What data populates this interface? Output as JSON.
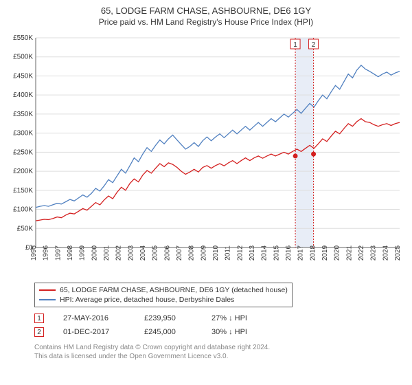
{
  "title": "65, LODGE FARM CHASE, ASHBOURNE, DE6 1GY",
  "subtitle": "Price paid vs. HM Land Registry's House Price Index (HPI)",
  "chart": {
    "type": "line",
    "background_color": "#ffffff",
    "grid_color": "#dddddd",
    "axis_color": "#666666",
    "label_fontsize": 10,
    "ylim": [
      0,
      550000
    ],
    "ytick_step": 50000,
    "y_tick_labels": [
      "£0",
      "£50K",
      "£100K",
      "£150K",
      "£200K",
      "£250K",
      "£300K",
      "£350K",
      "£400K",
      "£450K",
      "£500K",
      "£550K"
    ],
    "x_years": [
      1995,
      1996,
      1997,
      1998,
      1999,
      2000,
      2001,
      2002,
      2003,
      2004,
      2005,
      2006,
      2007,
      2008,
      2009,
      2010,
      2011,
      2012,
      2013,
      2014,
      2015,
      2016,
      2017,
      2018,
      2019,
      2020,
      2021,
      2022,
      2023,
      2024,
      2025
    ],
    "series": [
      {
        "id": "subject",
        "name": "65, LODGE FARM CHASE, ASHBOURNE, DE6 1GY (detached house)",
        "color": "#d42020",
        "line_width": 1.3,
        "values": [
          70000,
          72000,
          74000,
          73000,
          76000,
          80000,
          78000,
          85000,
          90000,
          88000,
          95000,
          102000,
          98000,
          108000,
          118000,
          112000,
          125000,
          135000,
          128000,
          145000,
          158000,
          150000,
          168000,
          180000,
          172000,
          190000,
          202000,
          195000,
          208000,
          220000,
          212000,
          222000,
          218000,
          210000,
          200000,
          192000,
          198000,
          205000,
          198000,
          210000,
          215000,
          208000,
          215000,
          220000,
          214000,
          222000,
          228000,
          220000,
          228000,
          235000,
          228000,
          235000,
          240000,
          234000,
          240000,
          245000,
          240000,
          245000,
          250000,
          245000,
          252000,
          258000,
          252000,
          260000,
          268000,
          260000,
          272000,
          285000,
          278000,
          292000,
          305000,
          298000,
          312000,
          325000,
          318000,
          330000,
          338000,
          330000,
          328000,
          322000,
          318000,
          322000,
          325000,
          320000,
          325000,
          328000
        ]
      },
      {
        "id": "hpi",
        "name": "HPI: Average price, detached house, Derbyshire Dales",
        "color": "#5080c0",
        "line_width": 1.3,
        "values": [
          105000,
          108000,
          110000,
          108000,
          112000,
          116000,
          114000,
          120000,
          126000,
          122000,
          130000,
          138000,
          132000,
          142000,
          155000,
          148000,
          162000,
          178000,
          170000,
          188000,
          205000,
          195000,
          215000,
          235000,
          225000,
          245000,
          262000,
          252000,
          268000,
          282000,
          272000,
          285000,
          295000,
          282000,
          270000,
          258000,
          265000,
          275000,
          265000,
          280000,
          290000,
          280000,
          290000,
          298000,
          288000,
          298000,
          308000,
          298000,
          308000,
          318000,
          308000,
          318000,
          328000,
          318000,
          328000,
          338000,
          330000,
          340000,
          350000,
          342000,
          352000,
          362000,
          352000,
          365000,
          378000,
          368000,
          385000,
          400000,
          390000,
          408000,
          425000,
          415000,
          435000,
          455000,
          445000,
          465000,
          478000,
          468000,
          462000,
          455000,
          448000,
          455000,
          460000,
          452000,
          458000,
          462000
        ]
      }
    ],
    "markers": [
      {
        "id": 1,
        "label": "1",
        "color": "#d42020",
        "year": 2016.4,
        "value": 239950
      },
      {
        "id": 2,
        "label": "2",
        "color": "#d42020",
        "year": 2017.9,
        "value": 245000
      }
    ],
    "shade_between_markers": true,
    "shade_color": "#e8edf7"
  },
  "legend": {
    "items": [
      {
        "color": "#d42020",
        "label": "65, LODGE FARM CHASE, ASHBOURNE, DE6 1GY (detached house)"
      },
      {
        "color": "#5080c0",
        "label": "HPI: Average price, detached house, Derbyshire Dales"
      }
    ]
  },
  "sales": [
    {
      "marker": "1",
      "marker_color": "#d42020",
      "date": "27-MAY-2016",
      "price": "£239,950",
      "delta": "27% ↓ HPI"
    },
    {
      "marker": "2",
      "marker_color": "#d42020",
      "date": "01-DEC-2017",
      "price": "£245,000",
      "delta": "30% ↓ HPI"
    }
  ],
  "footer_line1": "Contains HM Land Registry data © Crown copyright and database right 2024.",
  "footer_line2": "This data is licensed under the Open Government Licence v3.0."
}
